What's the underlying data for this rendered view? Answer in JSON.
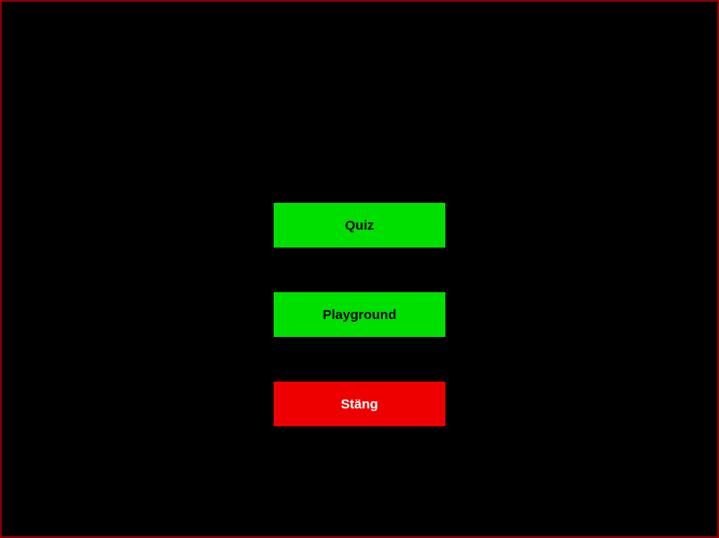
{
  "menu": {
    "buttons": [
      {
        "label": "Quiz",
        "bg_color": "#00e000",
        "text_color": "#000000"
      },
      {
        "label": "Playground",
        "bg_color": "#00e000",
        "text_color": "#000000"
      },
      {
        "label": "Stäng",
        "bg_color": "#ee0000",
        "text_color": "#ffffff"
      }
    ]
  },
  "frame": {
    "background_color": "#000000",
    "border_color": "#8b0000"
  }
}
